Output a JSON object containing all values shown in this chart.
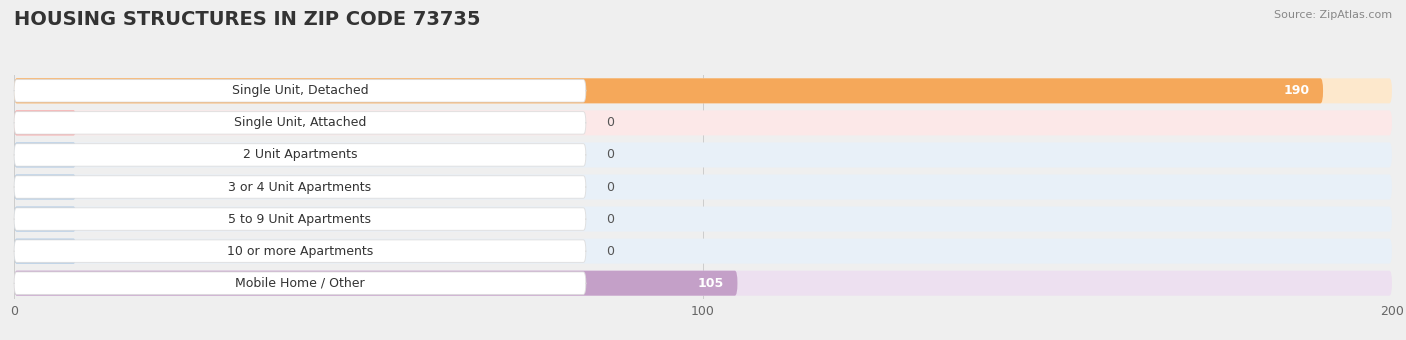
{
  "title": "HOUSING STRUCTURES IN ZIP CODE 73735",
  "source": "Source: ZipAtlas.com",
  "categories": [
    "Single Unit, Detached",
    "Single Unit, Attached",
    "2 Unit Apartments",
    "3 or 4 Unit Apartments",
    "5 to 9 Unit Apartments",
    "10 or more Apartments",
    "Mobile Home / Other"
  ],
  "values": [
    190,
    0,
    0,
    0,
    0,
    0,
    105
  ],
  "bar_colors": [
    "#f5a85a",
    "#f4a0a0",
    "#a8c4e0",
    "#a8c4e0",
    "#a8c4e0",
    "#a8c4e0",
    "#c4a0c8"
  ],
  "row_bg_colors": [
    "#fde8cc",
    "#fce8e8",
    "#e8f0f8",
    "#e8f0f8",
    "#e8f0f8",
    "#e8f0f8",
    "#ede0f0"
  ],
  "xlim": [
    0,
    200
  ],
  "xticks": [
    0,
    100,
    200
  ],
  "title_fontsize": 14,
  "bar_value_fontsize": 9,
  "label_fontsize": 9,
  "axis_fontsize": 9,
  "background_color": "#efefef",
  "label_box_color": "#ffffff",
  "label_box_edge_color": "#dddddd",
  "grid_color": "#cccccc",
  "text_color": "#333333",
  "value_outside_color": "#555555",
  "value_inside_color": "#ffffff"
}
